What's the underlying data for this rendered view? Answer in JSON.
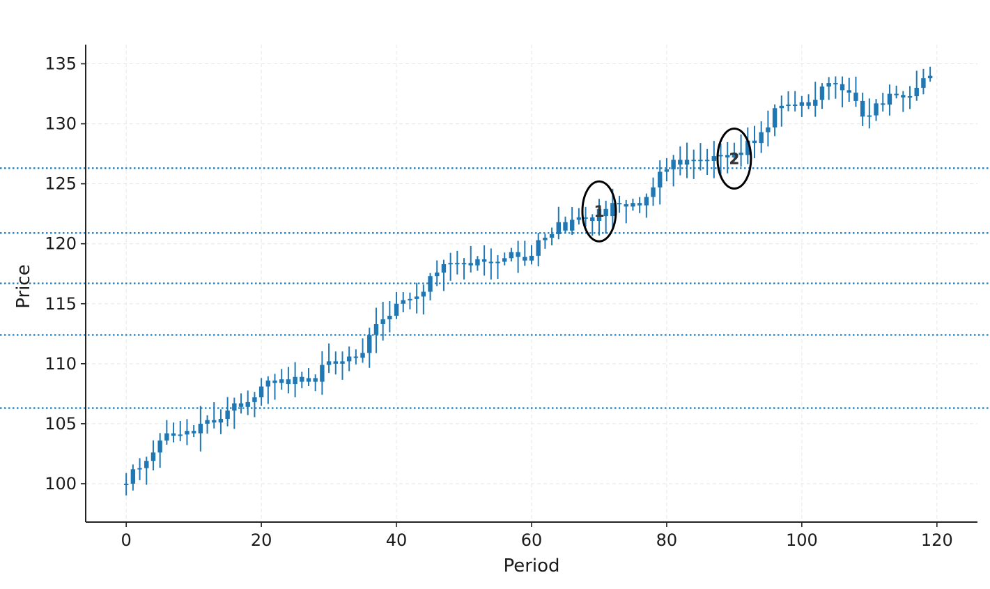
{
  "chart_data": {
    "type": "candlestick",
    "title": "",
    "xlabel": "Period",
    "ylabel": "Price",
    "xlim": [
      -6,
      126
    ],
    "ylim": [
      96.8,
      136.6
    ],
    "x_ticks": [
      0,
      20,
      40,
      60,
      80,
      100,
      120
    ],
    "y_ticks": [
      100,
      105,
      110,
      115,
      120,
      125,
      130,
      135
    ],
    "grid": true,
    "colors": {
      "candle": "#1f77b4",
      "level": "#1f77b4",
      "grid": "#e6e6e6",
      "axis": "#222222",
      "annotation": "#000000"
    },
    "close_prices": [
      100.0,
      101.2,
      101.3,
      101.9,
      102.6,
      103.6,
      104.2,
      104.0,
      104.1,
      104.4,
      104.2,
      105.0,
      105.3,
      105.1,
      105.4,
      106.1,
      106.7,
      106.4,
      106.8,
      107.2,
      108.1,
      108.6,
      108.4,
      108.7,
      108.3,
      108.9,
      108.5,
      108.8,
      108.5,
      109.9,
      110.2,
      110.0,
      110.2,
      110.6,
      110.5,
      110.9,
      112.4,
      113.3,
      113.7,
      114.0,
      115.0,
      115.3,
      115.4,
      115.6,
      116.0,
      117.3,
      117.6,
      118.3,
      118.4,
      118.3,
      118.4,
      118.2,
      118.7,
      118.5,
      118.4,
      118.5,
      118.8,
      119.3,
      118.9,
      118.6,
      119.0,
      120.3,
      120.5,
      120.8,
      121.8,
      121.1,
      122.0,
      122.2,
      122.2,
      121.9,
      122.9,
      122.3,
      123.4,
      123.3,
      123.1,
      123.4,
      123.2,
      123.9,
      124.7,
      126.0,
      126.2,
      127.0,
      126.6,
      127.0,
      126.9,
      127.0,
      126.9,
      127.3,
      127.4,
      127.2,
      127.6,
      127.4,
      128.6,
      128.4,
      129.3,
      129.7,
      131.3,
      131.5,
      131.6,
      131.5,
      131.8,
      131.5,
      132.0,
      133.1,
      133.4,
      133.3,
      132.8,
      132.6,
      131.9,
      130.6,
      130.7,
      131.7,
      131.6,
      132.5,
      132.4,
      132.2,
      132.3,
      133.0,
      133.8,
      134.0
    ],
    "support_resistance_levels": [
      106.3,
      112.4,
      116.7,
      120.9,
      126.3
    ],
    "annotations": [
      {
        "label": "1",
        "x": 70,
        "y": 122.7
      },
      {
        "label": "2",
        "x": 90,
        "y": 127.1
      }
    ]
  }
}
